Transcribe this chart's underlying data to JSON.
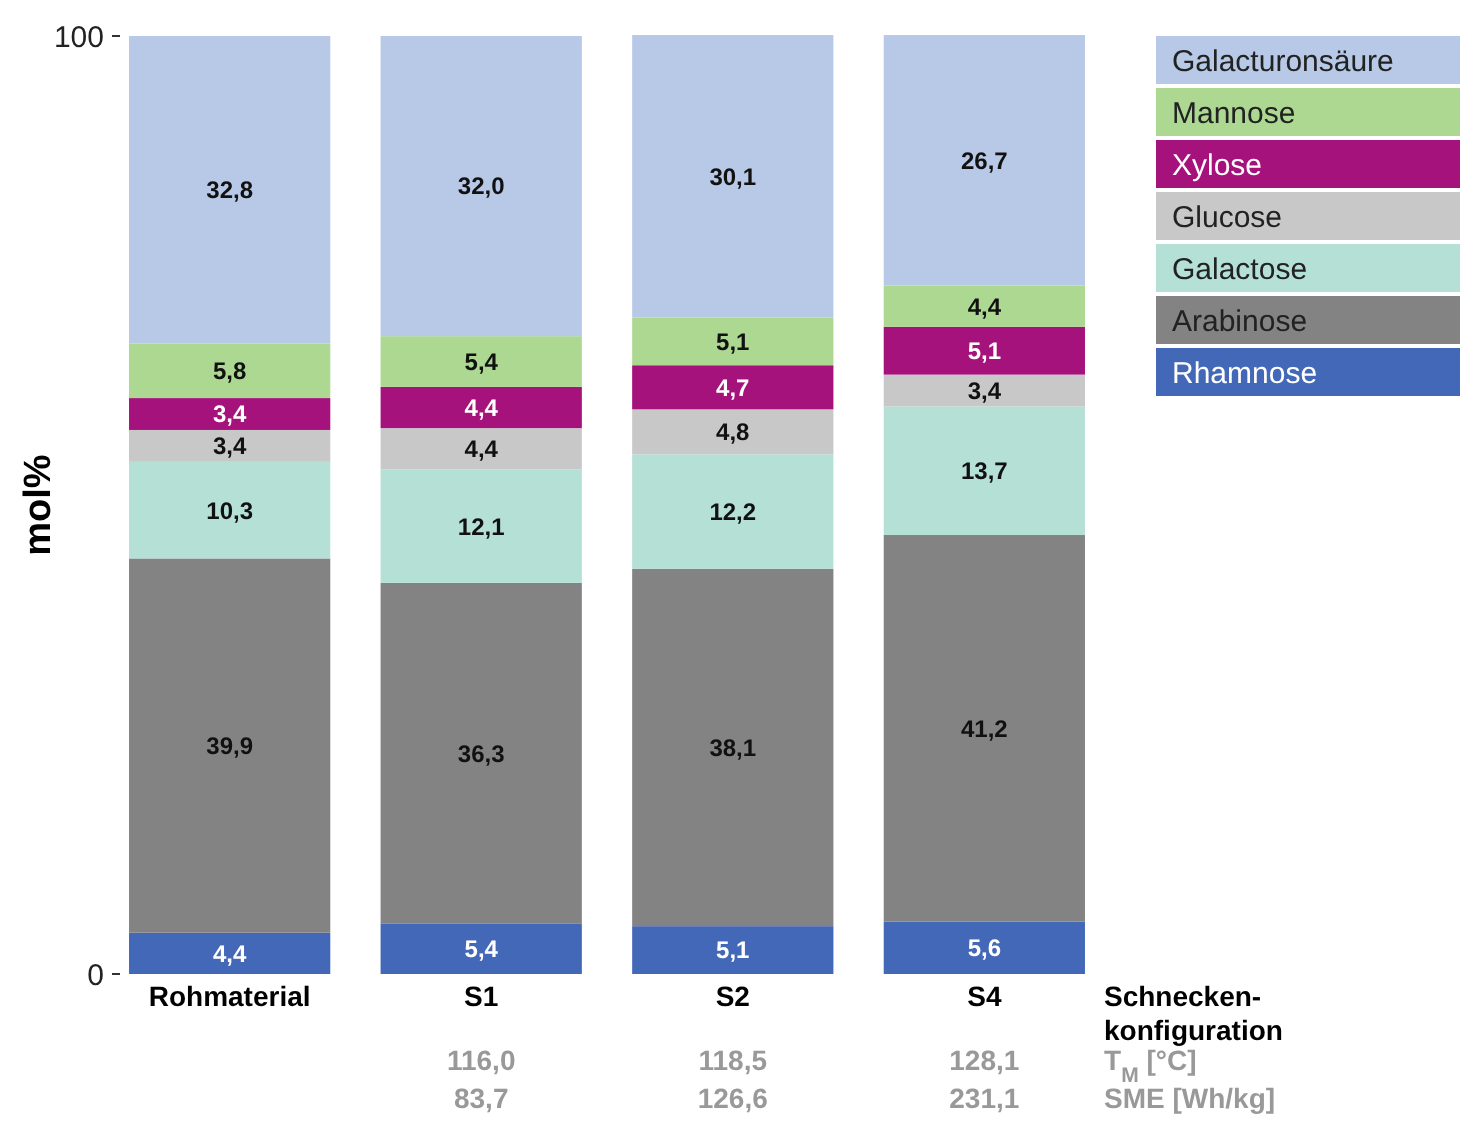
{
  "chart_data": {
    "type": "bar",
    "stacked": true,
    "categories": [
      "Rohmaterial",
      "S1",
      "S2",
      "S4"
    ],
    "ylabel": "mol%",
    "xlabel": "Schnecken-\nkonfiguration",
    "ylim": [
      0,
      100
    ],
    "yticks": [
      0,
      100
    ],
    "legend": "right",
    "data_labels": true,
    "series": [
      {
        "name": "Rhamnose",
        "color": "#4468b8",
        "values": [
          4.4,
          5.4,
          5.1,
          5.6
        ],
        "value_labels": [
          "4,4",
          "5,4",
          "5,1",
          "5,6"
        ]
      },
      {
        "name": "Arabinose",
        "color": "#838383",
        "values": [
          39.9,
          36.3,
          38.1,
          41.2
        ],
        "value_labels": [
          "39,9",
          "36,3",
          "38,1",
          "41,2"
        ]
      },
      {
        "name": "Galactose",
        "color": "#b5e0d6",
        "values": [
          10.3,
          12.1,
          12.2,
          13.7
        ],
        "value_labels": [
          "10,3",
          "12,1",
          "12,2",
          "13,7"
        ]
      },
      {
        "name": "Glucose",
        "color": "#c8c8c8",
        "values": [
          3.4,
          4.4,
          4.8,
          3.4
        ],
        "value_labels": [
          "3,4",
          "4,4",
          "4,8",
          "3,4"
        ]
      },
      {
        "name": "Xylose",
        "color": "#a5127c",
        "values": [
          3.4,
          4.4,
          4.7,
          5.1
        ],
        "value_labels": [
          "3,4",
          "4,4",
          "4,7",
          "5,1"
        ]
      },
      {
        "name": "Mannose",
        "color": "#acd891",
        "values": [
          5.8,
          5.4,
          5.1,
          4.4
        ],
        "value_labels": [
          "5,8",
          "5,4",
          "5,1",
          "4,4"
        ]
      },
      {
        "name": "Galacturonsäure",
        "color": "#b7c9e6",
        "values": [
          32.8,
          32.0,
          30.1,
          26.7
        ],
        "value_labels": [
          "32,8",
          "32,0",
          "30,1",
          "26,7"
        ]
      }
    ],
    "annotations": [
      "T$_{M}$ [°C]",
      "116,0",
      "118,5",
      "128,1",
      "SME [Wh/kg]",
      "83,7",
      "126,6",
      "231,1"
    ]
  }
}
